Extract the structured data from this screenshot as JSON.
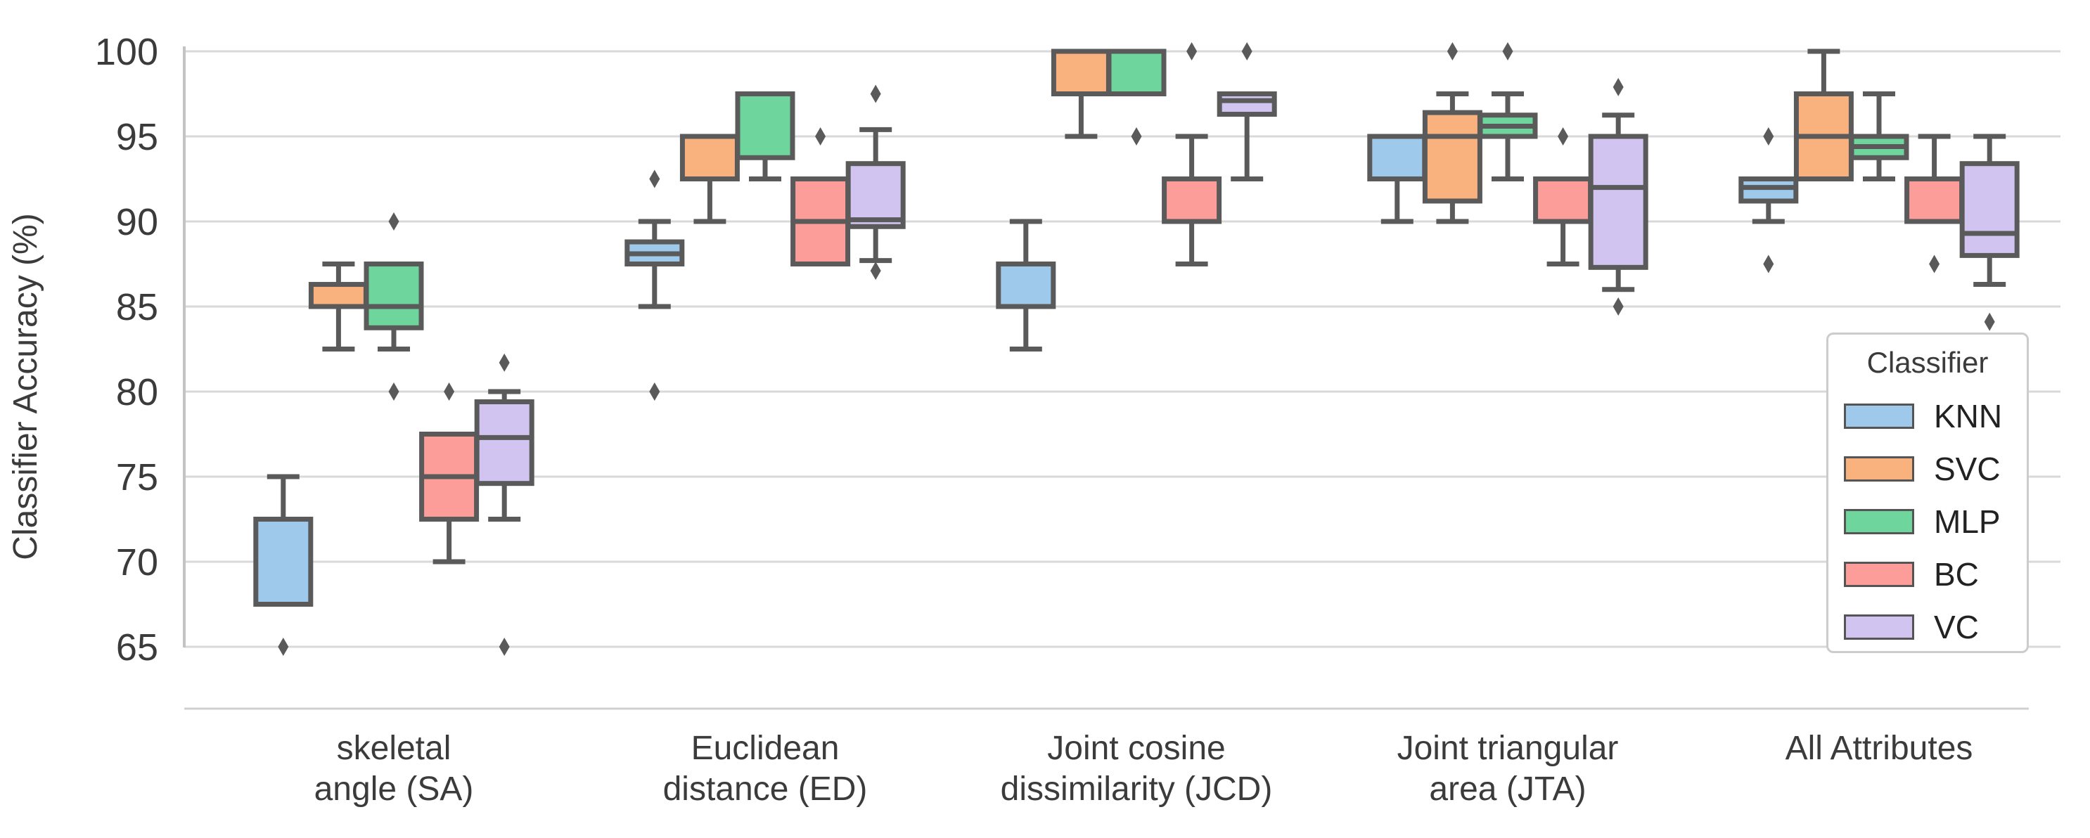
{
  "chart_data": {
    "type": "boxplot",
    "title": "",
    "xlabel": "",
    "ylabel": "Classifier Accuracy (%)",
    "ylim": [
      65,
      100
    ],
    "yticks": [
      100,
      95,
      90,
      85,
      80,
      75,
      70,
      65
    ],
    "grid": "horizontal",
    "legend": {
      "title": "Classifier",
      "position": "lower right inside"
    },
    "categories": [
      {
        "id": "SA",
        "lines": [
          "skeletal",
          "angle (SA)"
        ]
      },
      {
        "id": "ED",
        "lines": [
          "Euclidean",
          "distance (ED)"
        ]
      },
      {
        "id": "JCD",
        "lines": [
          "Joint cosine",
          "dissimilarity (JCD)"
        ]
      },
      {
        "id": "JTA",
        "lines": [
          "Joint triangular",
          "area (JTA)"
        ]
      },
      {
        "id": "ALL",
        "lines": [
          "All Attributes"
        ]
      }
    ],
    "series": [
      {
        "name": "KNN",
        "color": "#9ec9eb",
        "boxes": [
          {
            "whislo": 67.5,
            "q1": 67.5,
            "med": 67.5,
            "q3": 72.5,
            "whishi": 75,
            "outliers": [
              65
            ]
          },
          {
            "whislo": 85,
            "q1": 87.5,
            "med": 88.1,
            "q3": 88.8,
            "whishi": 90,
            "outliers": [
              92.5,
              80
            ]
          },
          {
            "whislo": 82.5,
            "q1": 85,
            "med": 87.5,
            "q3": 87.5,
            "whishi": 90,
            "outliers": []
          },
          {
            "whislo": 90,
            "q1": 92.5,
            "med": 95,
            "q3": 95,
            "whishi": 95,
            "outliers": []
          },
          {
            "whislo": 90,
            "q1": 91.2,
            "med": 92,
            "q3": 92.5,
            "whishi": 92.5,
            "outliers": [
              95,
              87.5
            ]
          }
        ]
      },
      {
        "name": "SVC",
        "color": "#f9b27e",
        "boxes": [
          {
            "whislo": 82.5,
            "q1": 85,
            "med": 85,
            "q3": 86.3,
            "whishi": 87.5,
            "outliers": []
          },
          {
            "whislo": 90,
            "q1": 92.5,
            "med": 92.5,
            "q3": 95,
            "whishi": 95,
            "outliers": []
          },
          {
            "whislo": 95,
            "q1": 97.5,
            "med": 100,
            "q3": 100,
            "whishi": 100,
            "outliers": []
          },
          {
            "whislo": 90,
            "q1": 91.2,
            "med": 95,
            "q3": 96.4,
            "whishi": 97.5,
            "outliers": [
              100
            ]
          },
          {
            "whislo": 92.5,
            "q1": 92.5,
            "med": 95,
            "q3": 97.5,
            "whishi": 100,
            "outliers": []
          }
        ]
      },
      {
        "name": "MLP",
        "color": "#6ed69c",
        "boxes": [
          {
            "whislo": 82.5,
            "q1": 83.75,
            "med": 85,
            "q3": 87.5,
            "whishi": 87.5,
            "outliers": [
              90,
              80
            ]
          },
          {
            "whislo": 92.5,
            "q1": 93.75,
            "med": 97.5,
            "q3": 97.5,
            "whishi": 97.5,
            "outliers": []
          },
          {
            "whislo": 97.5,
            "q1": 97.5,
            "med": 100,
            "q3": 100,
            "whishi": 100,
            "outliers": [
              95
            ]
          },
          {
            "whislo": 92.5,
            "q1": 95,
            "med": 95.6,
            "q3": 96.25,
            "whishi": 97.5,
            "outliers": [
              100
            ]
          },
          {
            "whislo": 92.5,
            "q1": 93.75,
            "med": 94.4,
            "q3": 95,
            "whishi": 97.5,
            "outliers": []
          }
        ]
      },
      {
        "name": "BC",
        "color": "#fc9d9a",
        "boxes": [
          {
            "whislo": 70,
            "q1": 72.5,
            "med": 75,
            "q3": 77.5,
            "whishi": 77.5,
            "outliers": [
              80
            ]
          },
          {
            "whislo": 87.5,
            "q1": 87.5,
            "med": 90,
            "q3": 92.5,
            "whishi": 92.5,
            "outliers": [
              95
            ]
          },
          {
            "whislo": 87.5,
            "q1": 90,
            "med": 90,
            "q3": 92.5,
            "whishi": 95,
            "outliers": [
              100
            ]
          },
          {
            "whislo": 87.5,
            "q1": 90,
            "med": 90,
            "q3": 92.5,
            "whishi": 92.5,
            "outliers": [
              95
            ]
          },
          {
            "whislo": 90,
            "q1": 90,
            "med": 90,
            "q3": 92.5,
            "whishi": 95,
            "outliers": [
              87.5
            ]
          }
        ]
      },
      {
        "name": "VC",
        "color": "#d2c4f0",
        "boxes": [
          {
            "whislo": 72.5,
            "q1": 74.6,
            "med": 77.3,
            "q3": 79.4,
            "whishi": 80,
            "outliers": [
              81.7,
              65
            ]
          },
          {
            "whislo": 87.7,
            "q1": 89.7,
            "med": 90.1,
            "q3": 93.4,
            "whishi": 95.4,
            "outliers": [
              97.5,
              87.1
            ]
          },
          {
            "whislo": 92.5,
            "q1": 96.3,
            "med": 97.1,
            "q3": 97.5,
            "whishi": 97.5,
            "outliers": [
              100
            ]
          },
          {
            "whislo": 86,
            "q1": 87.3,
            "med": 92,
            "q3": 95,
            "whishi": 96.25,
            "outliers": [
              97.9,
              85
            ]
          },
          {
            "whislo": 86.3,
            "q1": 88,
            "med": 89.3,
            "q3": 93.4,
            "whishi": 95,
            "outliers": [
              84.1
            ]
          }
        ]
      }
    ],
    "style": {
      "edge_color": "#5a5a5a",
      "grid_color": "#d9d9d9",
      "spine_color": "#c3c3c3",
      "text_color": "#3b3b3b",
      "outlier_marker": "diamond"
    }
  }
}
